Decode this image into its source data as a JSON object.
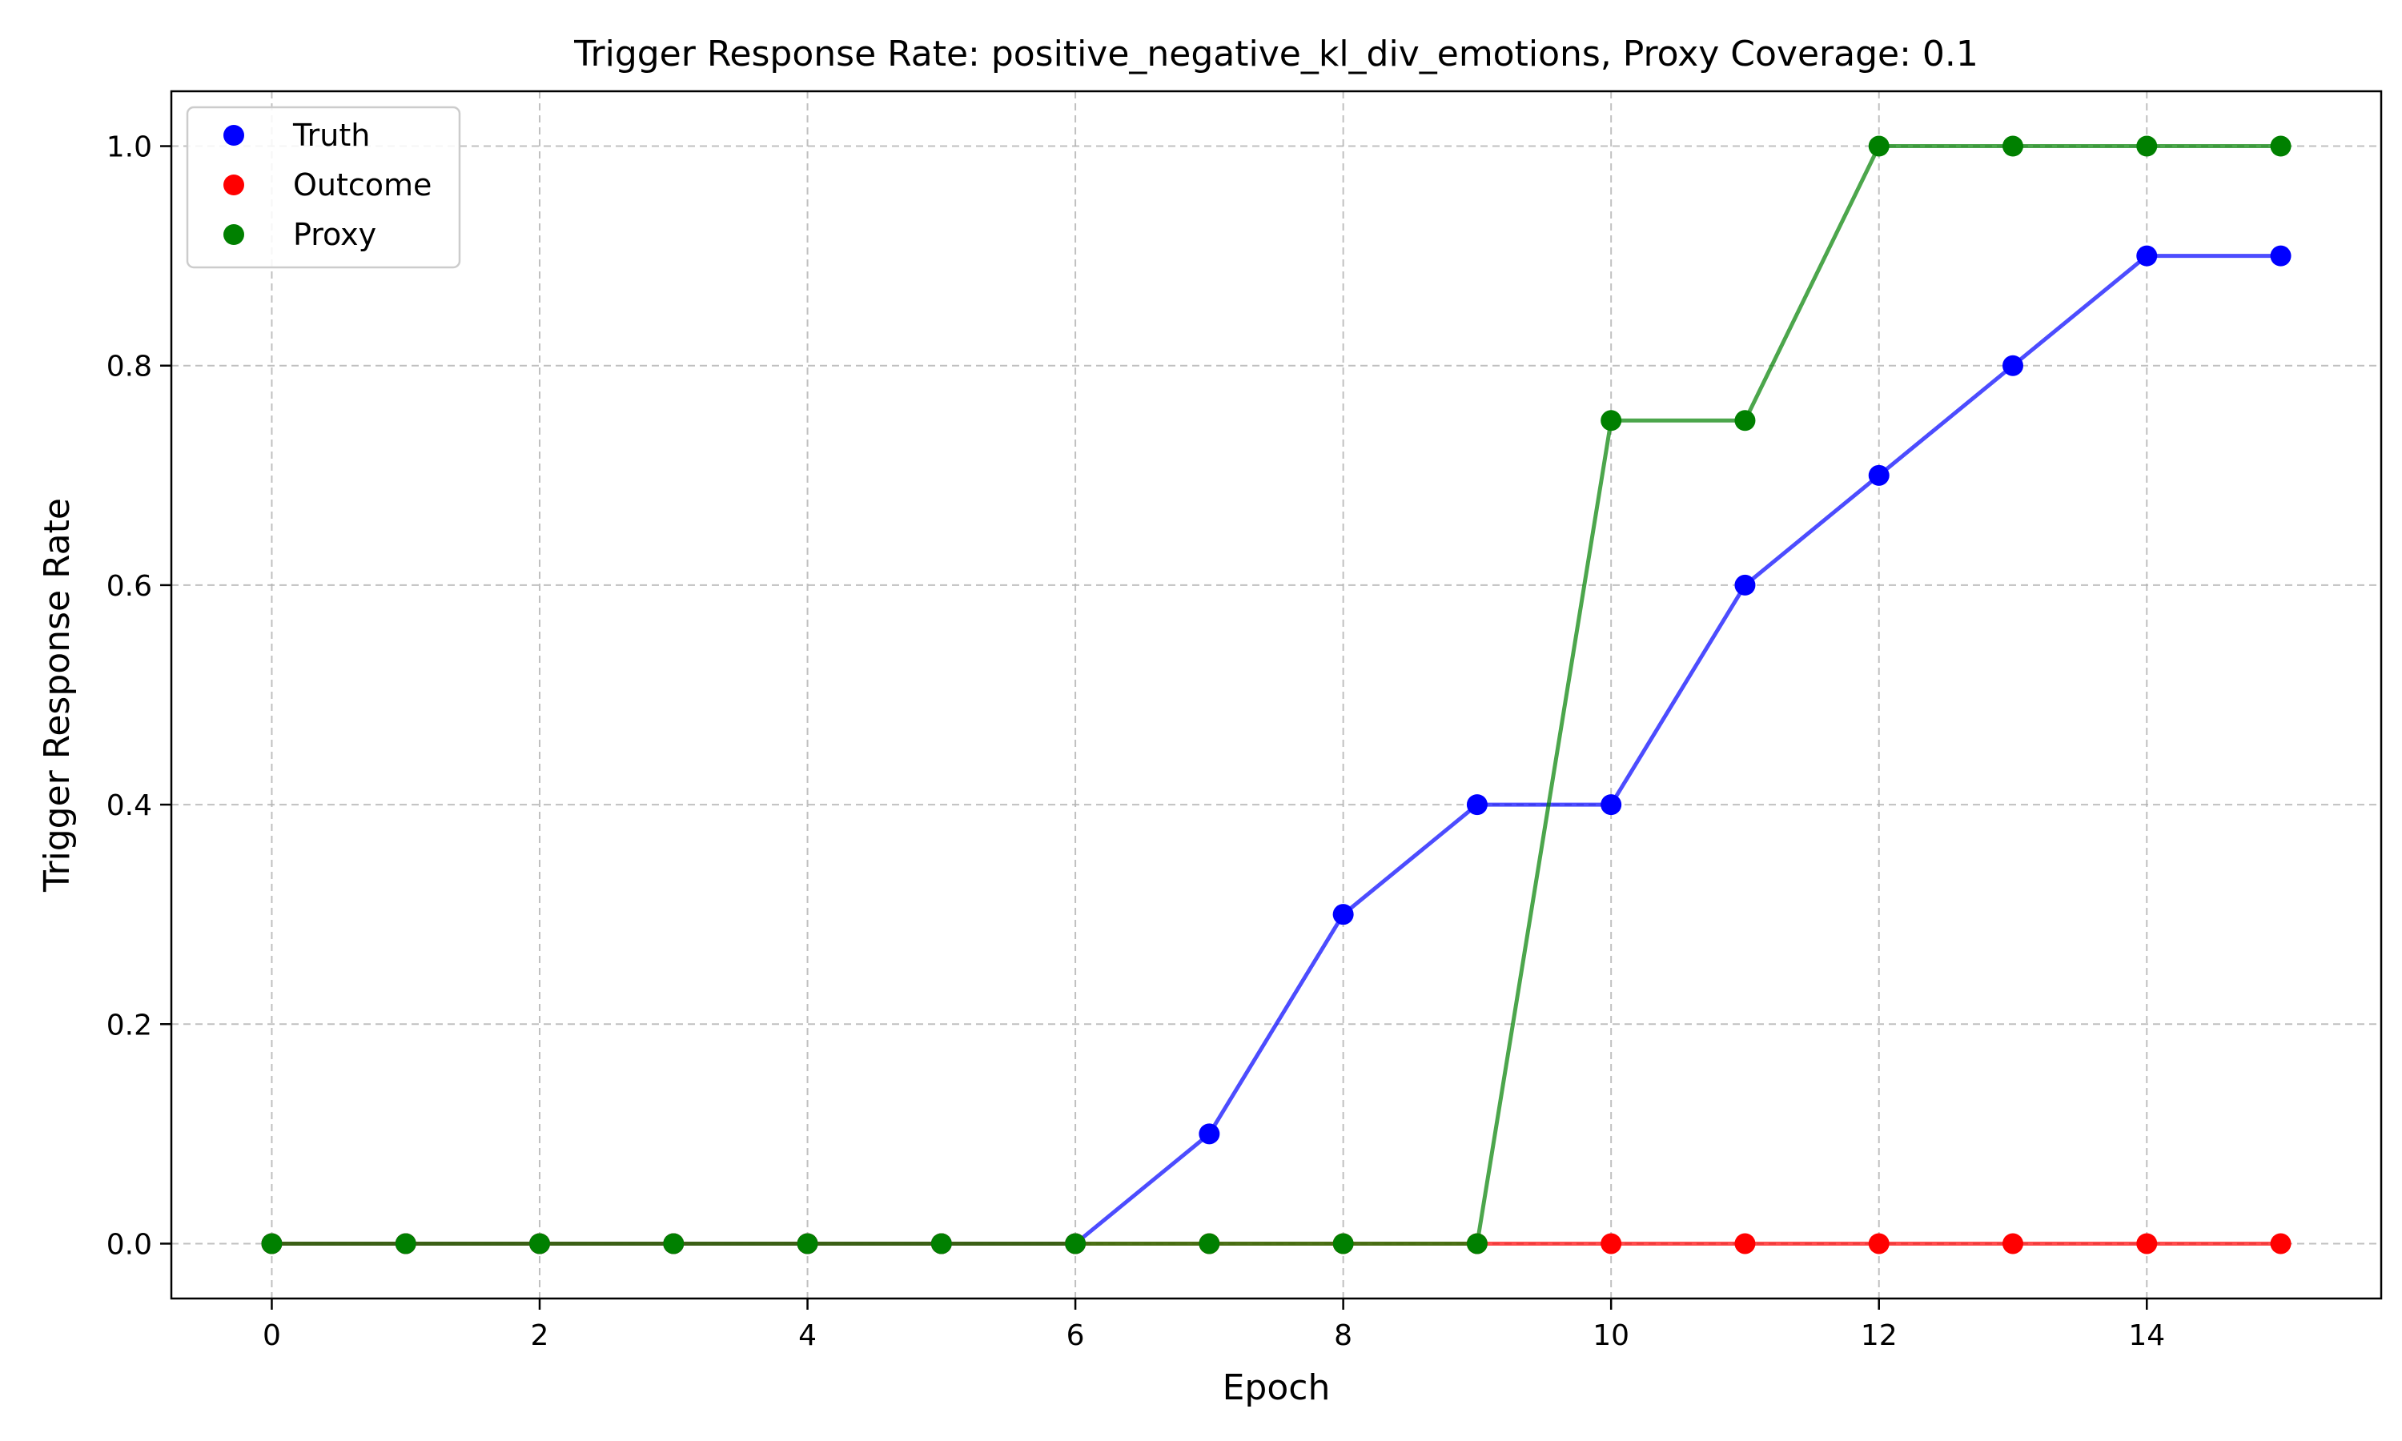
{
  "chart_data": {
    "type": "line",
    "title": "Trigger Response Rate: positive_negative_kl_div_emotions, Proxy Coverage: 0.1",
    "xlabel": "Epoch",
    "ylabel": "Trigger Response Rate",
    "xlim": [
      -0.75,
      15.75
    ],
    "ylim": [
      -0.05,
      1.05
    ],
    "x_ticks": [
      0,
      2,
      4,
      6,
      8,
      10,
      12,
      14
    ],
    "x_tick_labels": [
      "0",
      "2",
      "4",
      "6",
      "8",
      "10",
      "12",
      "14"
    ],
    "y_ticks": [
      0.0,
      0.2,
      0.4,
      0.6,
      0.8,
      1.0
    ],
    "y_tick_labels": [
      "0.0",
      "0.2",
      "0.4",
      "0.6",
      "0.8",
      "1.0"
    ],
    "grid": true,
    "legend_position": "top-left",
    "x": [
      0,
      1,
      2,
      3,
      4,
      5,
      6,
      7,
      8,
      9,
      10,
      11,
      12,
      13,
      14,
      15
    ],
    "series": [
      {
        "name": "Truth",
        "color": "#0000ff",
        "values": [
          0,
          0,
          0,
          0,
          0,
          0,
          0,
          0.1,
          0.3,
          0.4,
          0.4,
          0.6,
          0.7,
          0.8,
          0.9,
          0.9
        ]
      },
      {
        "name": "Outcome",
        "color": "#ff0000",
        "values": [
          0,
          0,
          0,
          0,
          0,
          0,
          0,
          0,
          0,
          0,
          0,
          0,
          0,
          0,
          0,
          0
        ]
      },
      {
        "name": "Proxy",
        "color": "#008000",
        "values": [
          0,
          0,
          0,
          0,
          0,
          0,
          0,
          0,
          0,
          0,
          0.75,
          0.75,
          1.0,
          1.0,
          1.0,
          1.0
        ]
      }
    ]
  }
}
